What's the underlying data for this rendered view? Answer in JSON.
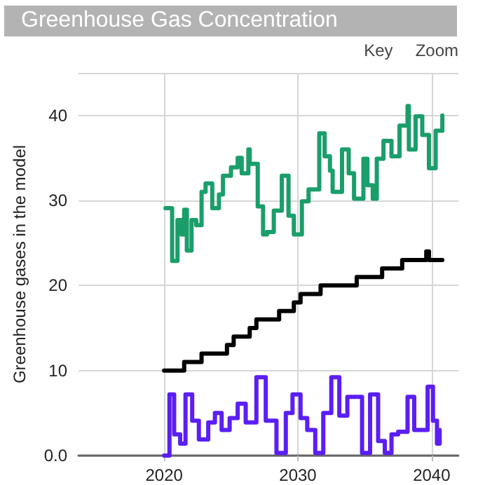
{
  "chart_data": {
    "type": "step",
    "title": "Greenhouse Gas Concentration",
    "ylabel": "Greenhouse gases in the model",
    "annotations": [
      "Key",
      "Zoom"
    ],
    "xlim": [
      2013.6,
      2042
    ],
    "xticks": [
      2020,
      2030,
      2040
    ],
    "ylim": [
      0,
      45
    ],
    "yticks": [
      {
        "value": 0,
        "label": "0.0"
      },
      10,
      20,
      30,
      40
    ],
    "grid": true,
    "marker": "none",
    "series": [
      {
        "color": "#1a9e6a",
        "x": [
          2020.1,
          2020.6,
          2021.0,
          2021.3,
          2021.5,
          2021.7,
          2022.05,
          2022.4,
          2022.8,
          2023.1,
          2023.6,
          2024.1,
          2024.4,
          2025.0,
          2025.5,
          2025.8,
          2026.3,
          2026.4,
          2027.0,
          2027.4,
          2027.7,
          2028.2,
          2028.8,
          2029.3,
          2029.7,
          2030.3,
          2030.8,
          2031.6,
          2032.0,
          2032.4,
          2032.6,
          2033.3,
          2033.8,
          2034.2,
          2034.9,
          2035.2,
          2035.6,
          2035.9,
          2036.4,
          2037.0,
          2037.6,
          2038.2,
          2038.3,
          2038.8,
          2039.3,
          2039.8,
          2040.3,
          2040.8
        ],
        "values": [
          29.1,
          22.9,
          27.7,
          26.0,
          28.9,
          24.1,
          27.7,
          27.1,
          31.0,
          32.0,
          29.1,
          30.7,
          32.9,
          33.9,
          35.0,
          33.2,
          36.0,
          34.3,
          29.3,
          26.0,
          26.3,
          28.8,
          32.9,
          28.2,
          26.0,
          29.9,
          31.3,
          37.9,
          35.2,
          33.5,
          31.0,
          36.0,
          33.2,
          30.2,
          34.9,
          31.8,
          30.2,
          34.9,
          37.0,
          35.2,
          38.8,
          41.1,
          36.0,
          39.9,
          37.7,
          33.8,
          38.2,
          40.0
        ]
      },
      {
        "color": "#000000",
        "x": [
          2020.0,
          2021.5,
          2022.8,
          2024.7,
          2025.2,
          2026.4,
          2026.9,
          2028.6,
          2029.7,
          2030.2,
          2031.7,
          2034.4,
          2036.3,
          2037.8,
          2039.6,
          2039.8,
          2040.8
        ],
        "values": [
          10,
          11,
          12,
          13,
          14,
          15,
          16,
          17,
          18,
          19,
          20,
          21,
          22,
          23,
          24,
          23,
          23
        ]
      },
      {
        "color": "#5b1ef5",
        "x": [
          2020.0,
          2020.4,
          2020.75,
          2021.2,
          2021.6,
          2022.1,
          2022.6,
          2023.3,
          2023.8,
          2024.3,
          2024.9,
          2025.5,
          2026.1,
          2026.9,
          2027.6,
          2028.4,
          2029.1,
          2029.6,
          2030.2,
          2030.7,
          2031.3,
          2031.9,
          2032.5,
          2033.1,
          2033.7,
          2034.8,
          2035.4,
          2036.0,
          2036.5,
          2037.0,
          2037.5,
          2038.2,
          2038.7,
          2039.7,
          2040.1,
          2040.4,
          2040.6
        ],
        "values": [
          0,
          7.2,
          2.5,
          1.4,
          7.2,
          4.1,
          1.9,
          3.9,
          5.0,
          3.0,
          4.4,
          6.1,
          3.9,
          9.2,
          4.1,
          0.3,
          5.0,
          7.2,
          4.4,
          3.0,
          0.3,
          5.0,
          9.2,
          4.7,
          6.9,
          0.3,
          7.2,
          1.7,
          0.3,
          2.5,
          2.8,
          6.9,
          3.0,
          8.1,
          4.1,
          1.4,
          3.0
        ]
      }
    ]
  }
}
